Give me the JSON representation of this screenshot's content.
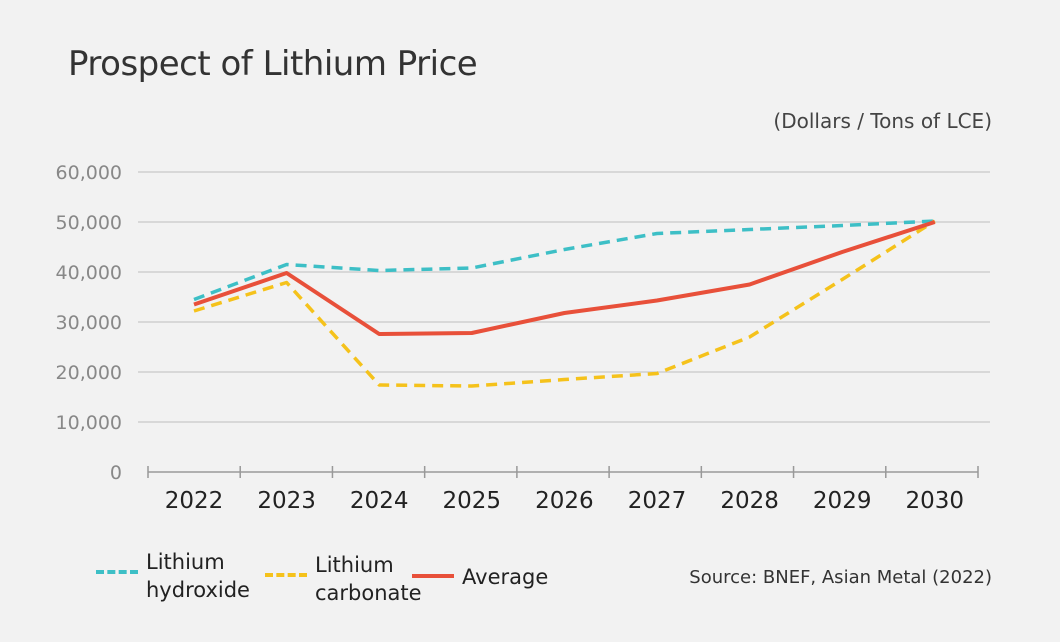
{
  "title": "Prospect of Lithium Price",
  "unit_label": "(Dollars / Tons of LCE)",
  "source": "Source: BNEF, Asian Metal (2022)",
  "colors": {
    "hydroxide": "#3dbfc6",
    "carbonate": "#f5c21b",
    "average": "#e8503a",
    "grid": "#cfcfcf",
    "tick_label": "#888888",
    "year_label": "#222222"
  },
  "chart_data": {
    "type": "line",
    "title": "Prospect of Lithium Price",
    "ylabel": "(Dollars / Tons of LCE)",
    "xlabel": "",
    "ylim": [
      0,
      60000
    ],
    "yticks": [
      0,
      10000,
      20000,
      30000,
      40000,
      50000,
      60000
    ],
    "ytick_labels": [
      "0",
      "10,000",
      "20,000",
      "30,000",
      "40,000",
      "50,000",
      "60,000"
    ],
    "categories": [
      "2022",
      "2023",
      "2024",
      "2025",
      "2026",
      "2027",
      "2028",
      "2029",
      "2030"
    ],
    "grid": true,
    "legend_position": "bottom-left",
    "series": [
      {
        "name": "Lithium hydroxide",
        "legend_lines": [
          "Lithium",
          "hydroxide"
        ],
        "style": "dashed",
        "color": "#3dbfc6",
        "values": [
          34500,
          41500,
          40300,
          40800,
          44500,
          47700,
          48500,
          49300,
          50200
        ]
      },
      {
        "name": "Lithium carbonate",
        "legend_lines": [
          "Lithium",
          "carbonate"
        ],
        "style": "dashed",
        "color": "#f5c21b",
        "values": [
          32200,
          37900,
          17400,
          17200,
          18500,
          19700,
          27000,
          38500,
          50200
        ]
      },
      {
        "name": "Average",
        "legend_lines": [
          "Average"
        ],
        "style": "solid",
        "color": "#e8503a",
        "values": [
          33500,
          39800,
          27600,
          27800,
          31800,
          34300,
          37500,
          44000,
          50000
        ]
      }
    ]
  }
}
